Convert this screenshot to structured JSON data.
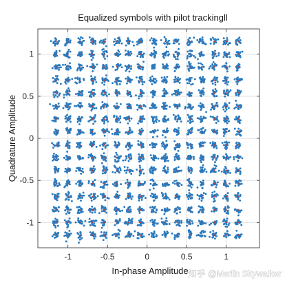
{
  "chart_data": {
    "type": "scatter",
    "title": "Equalized symbols with pilot trackingll",
    "xlabel": "In-phase Amplitude",
    "ylabel": "Quadrature Amplitude",
    "xlim": [
      -1.38,
      1.42
    ],
    "ylim": [
      -1.3,
      1.3
    ],
    "xticks": [
      -1,
      -0.5,
      0,
      0.5,
      1
    ],
    "xtick_labels": [
      "-1",
      "-0.5",
      "0",
      "0.5",
      "1"
    ],
    "yticks": [
      -1,
      -0.5,
      0,
      0.5,
      1
    ],
    "ytick_labels": [
      "-1",
      "-0.5",
      "0",
      "0.5",
      "1"
    ],
    "grid": true,
    "constellation": {
      "order": 256,
      "levels": [
        -1.15,
        -1.0,
        -0.85,
        -0.69,
        -0.54,
        -0.38,
        -0.23,
        -0.08,
        0.08,
        0.23,
        0.38,
        0.54,
        0.69,
        0.85,
        1.0,
        1.15
      ],
      "spread": 0.022
    },
    "colors": {
      "data": "#2b7bbf",
      "pilots": "#c8372e",
      "grid": "#dedede"
    }
  },
  "watermark": "知乎 @Merlin Skywalker"
}
